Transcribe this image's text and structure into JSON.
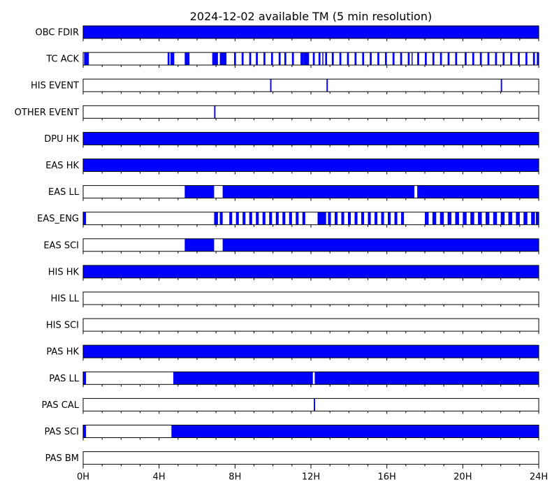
{
  "chart_data": {
    "type": "timeline",
    "title": "2024-12-02 available TM (5 min resolution)",
    "x_unit": "hours",
    "xlim": [
      0,
      24
    ],
    "x_ticks": [
      0,
      4,
      8,
      12,
      16,
      20,
      24
    ],
    "x_tick_labels": [
      "0H",
      "4H",
      "8H",
      "12H",
      "16H",
      "20H",
      "24H"
    ],
    "bar_color": "#0000ff",
    "rows": [
      {
        "label": "OBC FDIR",
        "intervals": [
          [
            0,
            24
          ]
        ]
      },
      {
        "label": "TC ACK",
        "intervals": [
          [
            0.05,
            0.3
          ],
          [
            4.45,
            4.55
          ],
          [
            4.6,
            4.8
          ],
          [
            5.35,
            5.6
          ],
          [
            6.8,
            7.1
          ],
          [
            7.2,
            7.55
          ],
          [
            7.95,
            8.05
          ],
          [
            8.35,
            8.45
          ],
          [
            8.75,
            8.85
          ],
          [
            9.1,
            9.2
          ],
          [
            9.5,
            9.6
          ],
          [
            9.9,
            10.0
          ],
          [
            10.3,
            10.4
          ],
          [
            10.6,
            10.7
          ],
          [
            11.0,
            11.1
          ],
          [
            11.45,
            11.6
          ],
          [
            11.6,
            11.9
          ],
          [
            12.1,
            12.2
          ],
          [
            12.4,
            12.5
          ],
          [
            12.6,
            12.65
          ],
          [
            12.75,
            12.85
          ],
          [
            13.1,
            13.2
          ],
          [
            13.5,
            13.6
          ],
          [
            13.9,
            14.0
          ],
          [
            14.3,
            14.4
          ],
          [
            14.7,
            14.8
          ],
          [
            15.1,
            15.2
          ],
          [
            15.5,
            15.6
          ],
          [
            15.9,
            16.0
          ],
          [
            16.3,
            16.4
          ],
          [
            16.7,
            16.8
          ],
          [
            17.1,
            17.2
          ],
          [
            17.3,
            17.35
          ],
          [
            17.6,
            17.7
          ],
          [
            18.0,
            18.1
          ],
          [
            18.4,
            18.5
          ],
          [
            18.8,
            18.9
          ],
          [
            19.2,
            19.3
          ],
          [
            19.6,
            19.7
          ],
          [
            20.1,
            20.2
          ],
          [
            20.5,
            20.6
          ],
          [
            20.9,
            21.0
          ],
          [
            21.3,
            21.4
          ],
          [
            21.7,
            21.8
          ],
          [
            22.1,
            22.2
          ],
          [
            22.5,
            22.6
          ],
          [
            22.9,
            23.0
          ],
          [
            23.3,
            23.4
          ],
          [
            23.7,
            23.8
          ],
          [
            23.9,
            24.0
          ]
        ]
      },
      {
        "label": "HIS EVENT",
        "intervals": [
          [
            9.85,
            9.92
          ],
          [
            12.82,
            12.89
          ],
          [
            22.0,
            22.07
          ]
        ]
      },
      {
        "label": "OTHER EVENT",
        "intervals": [
          [
            6.9,
            6.97
          ]
        ]
      },
      {
        "label": "DPU HK",
        "intervals": [
          [
            0,
            24
          ]
        ]
      },
      {
        "label": "EAS HK",
        "intervals": [
          [
            0,
            24
          ]
        ]
      },
      {
        "label": "EAS LL",
        "intervals": [
          [
            5.35,
            6.9
          ],
          [
            7.35,
            17.45
          ],
          [
            17.6,
            24
          ]
        ]
      },
      {
        "label": "EAS_ENG",
        "intervals": [
          [
            0,
            0.15
          ],
          [
            6.9,
            7.1
          ],
          [
            7.2,
            7.35
          ],
          [
            7.7,
            7.85
          ],
          [
            8.05,
            8.2
          ],
          [
            8.4,
            8.55
          ],
          [
            8.75,
            8.9
          ],
          [
            9.1,
            9.25
          ],
          [
            9.45,
            9.6
          ],
          [
            9.8,
            9.95
          ],
          [
            10.15,
            10.3
          ],
          [
            10.5,
            10.65
          ],
          [
            10.85,
            11.0
          ],
          [
            11.2,
            11.35
          ],
          [
            11.55,
            11.7
          ],
          [
            12.35,
            12.8
          ],
          [
            12.9,
            13.05
          ],
          [
            13.25,
            13.4
          ],
          [
            13.6,
            13.75
          ],
          [
            13.95,
            14.1
          ],
          [
            14.3,
            14.45
          ],
          [
            14.65,
            14.8
          ],
          [
            15.0,
            15.15
          ],
          [
            15.35,
            15.5
          ],
          [
            15.7,
            15.85
          ],
          [
            16.05,
            16.2
          ],
          [
            16.4,
            16.55
          ],
          [
            16.75,
            16.9
          ],
          [
            18.0,
            18.2
          ],
          [
            18.4,
            18.6
          ],
          [
            18.8,
            19.0
          ],
          [
            19.2,
            19.4
          ],
          [
            19.6,
            19.8
          ],
          [
            20.0,
            20.2
          ],
          [
            20.4,
            20.6
          ],
          [
            20.8,
            21.0
          ],
          [
            21.2,
            21.4
          ],
          [
            21.6,
            21.8
          ],
          [
            22.0,
            22.2
          ],
          [
            22.4,
            22.6
          ],
          [
            22.8,
            23.0
          ],
          [
            23.2,
            23.4
          ],
          [
            23.6,
            23.8
          ],
          [
            23.85,
            24.0
          ]
        ]
      },
      {
        "label": "EAS SCI",
        "intervals": [
          [
            5.35,
            6.9
          ],
          [
            7.35,
            24
          ]
        ]
      },
      {
        "label": "HIS HK",
        "intervals": [
          [
            0,
            24
          ]
        ]
      },
      {
        "label": "HIS LL",
        "intervals": []
      },
      {
        "label": "HIS SCI",
        "intervals": []
      },
      {
        "label": "PAS HK",
        "intervals": [
          [
            0,
            24
          ]
        ]
      },
      {
        "label": "PAS LL",
        "intervals": [
          [
            0,
            0.15
          ],
          [
            4.75,
            12.1
          ],
          [
            12.2,
            24
          ]
        ]
      },
      {
        "label": "PAS CAL",
        "intervals": [
          [
            12.15,
            12.22
          ]
        ]
      },
      {
        "label": "PAS SCI",
        "intervals": [
          [
            0,
            0.15
          ],
          [
            4.65,
            24
          ]
        ]
      },
      {
        "label": "PAS BM",
        "intervals": []
      }
    ]
  }
}
